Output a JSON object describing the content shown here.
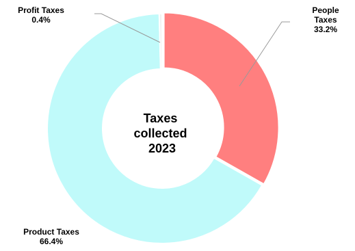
{
  "chart_data": {
    "type": "pie",
    "donut": true,
    "center_label": [
      "Taxes",
      "collected",
      "2023"
    ],
    "slices": [
      {
        "label_lines": [
          "People",
          "Taxes"
        ],
        "percent_label": "33.2%",
        "value": 33.2,
        "color": "#ff7f7f"
      },
      {
        "label_lines": [
          "Product Taxes"
        ],
        "percent_label": "66.4%",
        "value": 66.4,
        "color": "#c0fafa"
      },
      {
        "label_lines": [
          "Profit Taxes"
        ],
        "percent_label": "0.4%",
        "value": 0.4,
        "color": "#f2f2f2"
      }
    ],
    "legend": "none"
  }
}
